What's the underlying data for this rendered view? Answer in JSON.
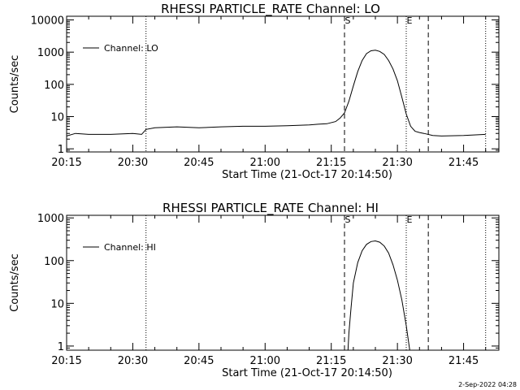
{
  "footer": "2-Sep-2022 04:28",
  "chart_data": [
    {
      "type": "line",
      "scale": "log",
      "title": "RHESSI PARTICLE_RATE Channel: LO",
      "xlabel": "Start Time (21-Oct-17 20:14:50)",
      "ylabel": "Counts/sec",
      "xlim": [
        "20:15",
        "21:53"
      ],
      "ylim": [
        0.8,
        13000
      ],
      "xticks": [
        "20:15",
        "20:30",
        "20:45",
        "21:00",
        "21:15",
        "21:30",
        "21:45"
      ],
      "yticks": [
        "1",
        "10",
        "100",
        "1000",
        "10000"
      ],
      "legend": {
        "label": "Channel: LO",
        "position": "top-left"
      },
      "markers": [
        {
          "label": "S",
          "time": "21:18",
          "style": "dashed"
        },
        {
          "label": "E",
          "time": "21:32",
          "style": "dotted"
        }
      ],
      "vlines": [
        {
          "time": "20:15",
          "style": "dotted"
        },
        {
          "time": "20:33",
          "style": "dotted"
        },
        {
          "time": "21:37",
          "style": "dashed"
        },
        {
          "time": "21:50",
          "style": "dotted"
        }
      ],
      "series": [
        {
          "name": "Channel: LO",
          "x": [
            "20:15",
            "20:17",
            "20:20",
            "20:25",
            "20:30",
            "20:32",
            "20:33",
            "20:35",
            "20:40",
            "20:45",
            "20:50",
            "20:55",
            "21:00",
            "21:05",
            "21:10",
            "21:12",
            "21:14",
            "21:16",
            "21:17",
            "21:18",
            "21:19",
            "21:20",
            "21:21",
            "21:22",
            "21:23",
            "21:24",
            "21:25",
            "21:26",
            "21:27",
            "21:28",
            "21:29",
            "21:30",
            "21:31",
            "21:32",
            "21:33",
            "21:34",
            "21:35",
            "21:36",
            "21:38",
            "21:40",
            "21:45",
            "21:50"
          ],
          "values": [
            2.5,
            3.0,
            2.8,
            2.8,
            3.0,
            2.8,
            4.0,
            4.5,
            4.8,
            4.5,
            4.8,
            5.0,
            5.0,
            5.2,
            5.5,
            5.8,
            6.0,
            7.0,
            9.0,
            13,
            30,
            90,
            250,
            550,
            900,
            1100,
            1150,
            1050,
            850,
            550,
            300,
            130,
            40,
            12,
            5.0,
            3.5,
            3.2,
            3.0,
            2.6,
            2.5,
            2.6,
            2.8
          ]
        }
      ]
    },
    {
      "type": "line",
      "scale": "log",
      "title": "RHESSI PARTICLE_RATE Channel: HI",
      "xlabel": "Start Time (21-Oct-17 20:14:50)",
      "ylabel": "Counts/sec",
      "xlim": [
        "20:15",
        "21:53"
      ],
      "ylim": [
        0.8,
        1150
      ],
      "xticks": [
        "20:15",
        "20:30",
        "20:45",
        "21:00",
        "21:15",
        "21:30",
        "21:45"
      ],
      "yticks": [
        "1",
        "10",
        "100",
        "1000"
      ],
      "legend": {
        "label": "Channel: HI",
        "position": "top-left"
      },
      "markers": [
        {
          "label": "S",
          "time": "21:18",
          "style": "dashed"
        },
        {
          "label": "E",
          "time": "21:32",
          "style": "dotted"
        }
      ],
      "vlines": [
        {
          "time": "20:15",
          "style": "dotted"
        },
        {
          "time": "20:33",
          "style": "dotted"
        },
        {
          "time": "21:37",
          "style": "dashed"
        },
        {
          "time": "21:50",
          "style": "dotted"
        }
      ],
      "series": [
        {
          "name": "Channel: HI",
          "x": [
            "21:18.8",
            "21:19",
            "21:19.5",
            "21:20",
            "21:21",
            "21:22",
            "21:23",
            "21:24",
            "21:25",
            "21:26",
            "21:27",
            "21:28",
            "21:29",
            "21:30",
            "21:31",
            "21:32",
            "21:32.8"
          ],
          "values": [
            0.8,
            2.0,
            8,
            30,
            90,
            170,
            240,
            280,
            290,
            270,
            220,
            150,
            80,
            35,
            12,
            3,
            0.8
          ]
        }
      ]
    }
  ]
}
